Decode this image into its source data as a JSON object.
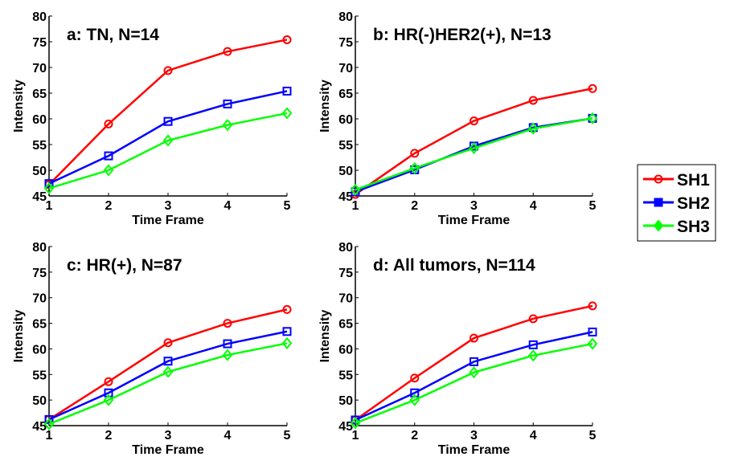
{
  "colors": {
    "SH1": "#ff0000",
    "SH2": "#0000ff",
    "SH3": "#00ff00"
  },
  "legend": {
    "placement": "right",
    "entries": [
      {
        "name": "SH1",
        "marker": "circle"
      },
      {
        "name": "SH2",
        "marker": "square"
      },
      {
        "name": "SH3",
        "marker": "diamond"
      }
    ]
  },
  "chart_data": [
    {
      "type": "line",
      "title": "a: TN, N=14",
      "xlabel": "Time Frame",
      "ylabel": "Intensity",
      "x": [
        1,
        2,
        3,
        4,
        5
      ],
      "xlim": [
        1,
        5
      ],
      "ylim": [
        45,
        80
      ],
      "yticks": [
        45,
        50,
        55,
        60,
        65,
        70,
        75,
        80
      ],
      "grid": false,
      "series": [
        {
          "name": "SH1",
          "values": [
            47.2,
            59.0,
            69.4,
            73.1,
            75.4
          ]
        },
        {
          "name": "SH2",
          "values": [
            47.4,
            52.8,
            59.5,
            62.9,
            65.4
          ]
        },
        {
          "name": "SH3",
          "values": [
            46.5,
            50.0,
            55.8,
            58.8,
            61.1
          ]
        }
      ]
    },
    {
      "type": "line",
      "title": "b: HR(-)HER2(+), N=13",
      "xlabel": "Time Frame",
      "ylabel": "Intensity",
      "x": [
        1,
        2,
        3,
        4,
        5
      ],
      "xlim": [
        1,
        5
      ],
      "ylim": [
        45,
        80
      ],
      "yticks": [
        45,
        50,
        55,
        60,
        65,
        70,
        75,
        80
      ],
      "grid": false,
      "series": [
        {
          "name": "SH1",
          "values": [
            45.3,
            53.3,
            59.6,
            63.6,
            65.9
          ]
        },
        {
          "name": "SH2",
          "values": [
            45.8,
            50.1,
            54.7,
            58.3,
            60.1
          ]
        },
        {
          "name": "SH3",
          "values": [
            46.2,
            50.4,
            54.3,
            58.1,
            60.1
          ]
        }
      ]
    },
    {
      "type": "line",
      "title": "c: HR(+), N=87",
      "xlabel": "Time Frame",
      "ylabel": "Intensity",
      "x": [
        1,
        2,
        3,
        4,
        5
      ],
      "xlim": [
        1,
        5
      ],
      "ylim": [
        45,
        80
      ],
      "yticks": [
        45,
        50,
        55,
        60,
        65,
        70,
        75,
        80
      ],
      "grid": false,
      "series": [
        {
          "name": "SH1",
          "values": [
            46.2,
            53.6,
            61.2,
            65.0,
            67.7
          ]
        },
        {
          "name": "SH2",
          "values": [
            46.2,
            51.4,
            57.6,
            61.0,
            63.4
          ]
        },
        {
          "name": "SH3",
          "values": [
            45.3,
            50.0,
            55.5,
            58.8,
            61.1
          ]
        }
      ]
    },
    {
      "type": "line",
      "title": "d: All tumors, N=114",
      "xlabel": "Time Frame",
      "ylabel": "Intensity",
      "x": [
        1,
        2,
        3,
        4,
        5
      ],
      "xlim": [
        1,
        5
      ],
      "ylim": [
        45,
        80
      ],
      "yticks": [
        45,
        50,
        55,
        60,
        65,
        70,
        75,
        80
      ],
      "grid": false,
      "series": [
        {
          "name": "SH1",
          "values": [
            46.1,
            54.3,
            62.1,
            65.9,
            68.4
          ]
        },
        {
          "name": "SH2",
          "values": [
            46.1,
            51.4,
            57.5,
            60.8,
            63.3
          ]
        },
        {
          "name": "SH3",
          "values": [
            45.5,
            50.0,
            55.4,
            58.7,
            61.0
          ]
        }
      ]
    }
  ]
}
